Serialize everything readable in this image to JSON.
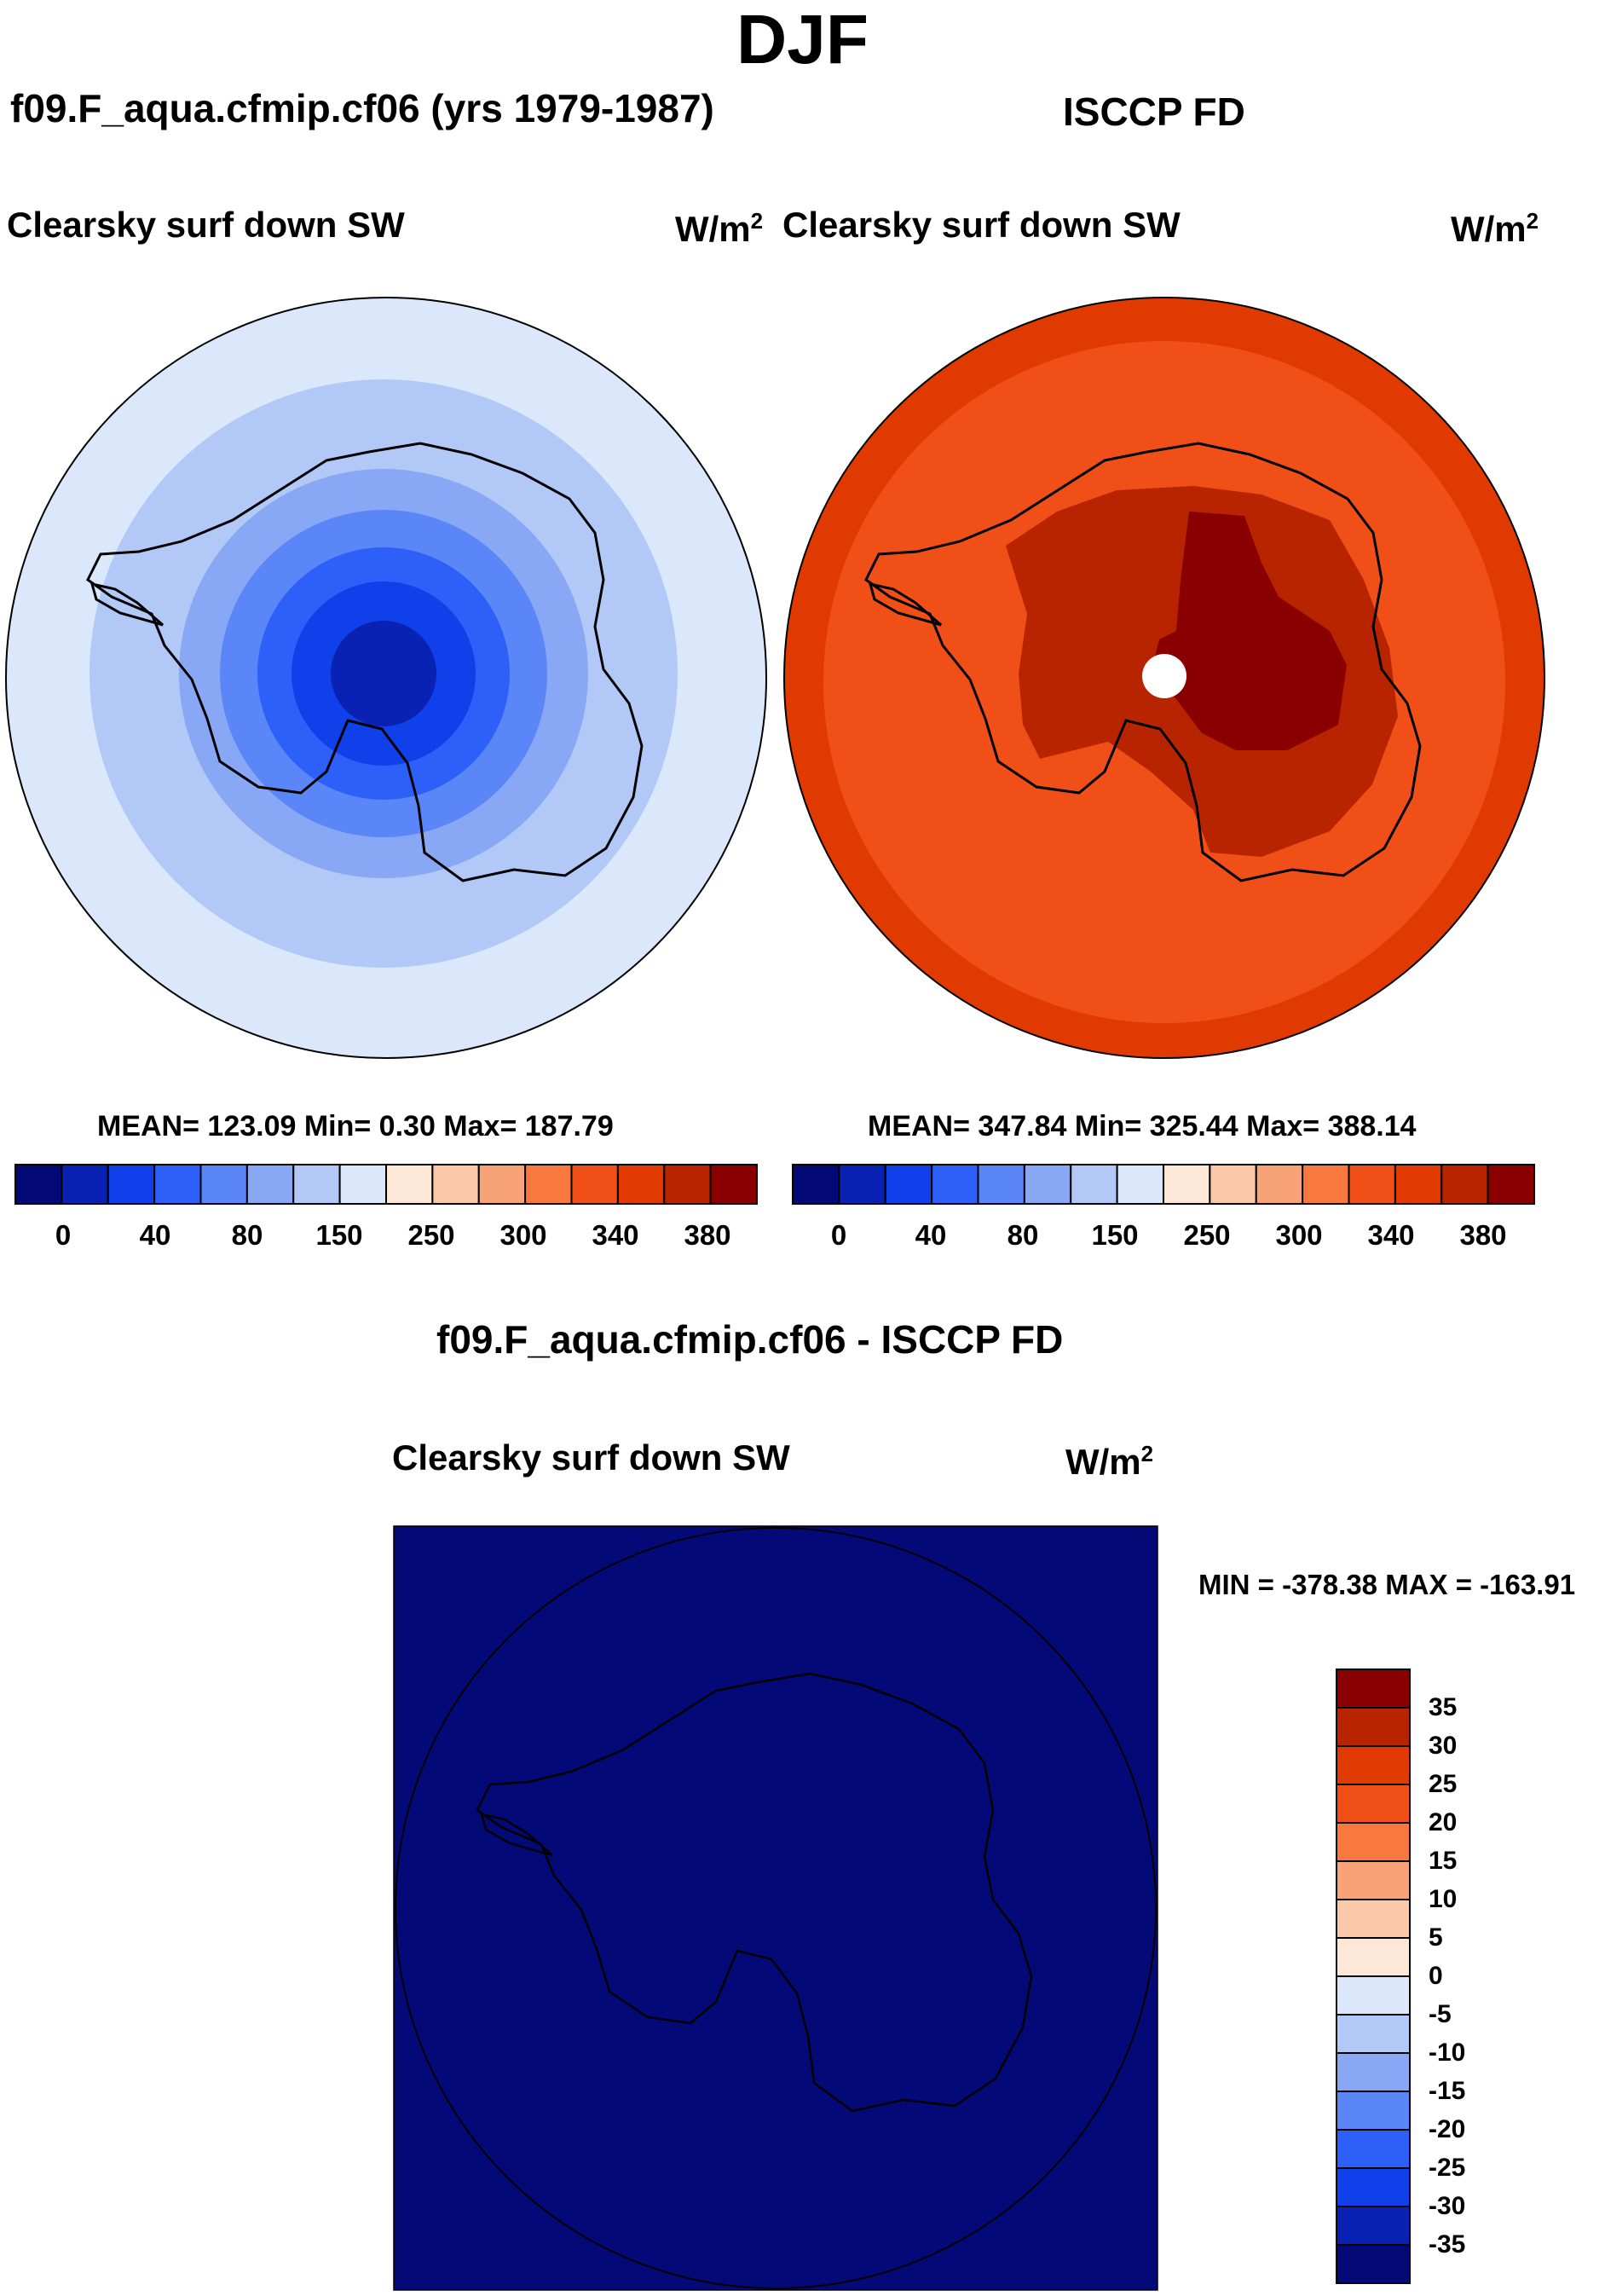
{
  "figure": {
    "season": "DJF"
  },
  "panel_model": {
    "title": "f09.F_aqua.cfmip.cf06 (yrs 1979-1987)",
    "variable": "Clearsky surf down SW",
    "units_base": "W/m",
    "units_exp": "2",
    "stats_text": "MEAN= 123.09  Min=   0.30  Max= 187.79"
  },
  "panel_obs": {
    "title": "ISCCP FD",
    "variable": "Clearsky surf down SW",
    "units_base": "W/m",
    "units_exp": "2",
    "stats_text": "MEAN= 347.84  Min= 325.44  Max= 388.14"
  },
  "panel_diff": {
    "title": "f09.F_aqua.cfmip.cf06 - ISCCP FD",
    "variable": "Clearsky surf down SW",
    "units_base": "W/m",
    "units_exp": "2",
    "stats_text": "MIN = -378.38 MAX = -163.91"
  },
  "chart_data": [
    {
      "type": "heatmap",
      "projection": "south polar stereographic",
      "title": "f09.F_aqua.cfmip.cf06 (yrs 1979-1987)",
      "variable": "Clearsky surf down SW",
      "units": "W/m2",
      "mean": 123.09,
      "min": 0.3,
      "max": 187.79,
      "contour_rings_outer_to_inner": [
        150,
        120,
        100,
        80,
        60,
        40,
        20
      ],
      "colorbar_levels": [
        0,
        20,
        40,
        60,
        80,
        100,
        150,
        200,
        250,
        275,
        300,
        320,
        340,
        360,
        380
      ],
      "colorbar_tick_labels": [
        "0",
        "40",
        "80",
        "150",
        "250",
        "300",
        "340",
        "380"
      ]
    },
    {
      "type": "heatmap",
      "projection": "south polar stereographic",
      "title": "ISCCP FD",
      "variable": "Clearsky surf down SW",
      "units": "W/m2",
      "mean": 347.84,
      "min": 325.44,
      "max": 388.14,
      "colorbar_tick_labels": [
        "0",
        "40",
        "80",
        "150",
        "250",
        "300",
        "340",
        "380"
      ]
    },
    {
      "type": "heatmap",
      "projection": "south polar stereographic",
      "title": "f09.F_aqua.cfmip.cf06 - ISCCP FD",
      "variable": "Clearsky surf down SW",
      "units": "W/m2",
      "min": -378.38,
      "max": -163.91,
      "colorbar_tick_labels": [
        "35",
        "30",
        "25",
        "20",
        "15",
        "10",
        "5",
        "0",
        "-5",
        "-10",
        "-15",
        "-20",
        "-25",
        "-30",
        "-35"
      ]
    }
  ],
  "colors": {
    "palette": [
      "#030a78",
      "#0a22b4",
      "#1040ea",
      "#2c60f8",
      "#5a86f8",
      "#88a8f6",
      "#b2c9f8",
      "#dbe8fb",
      "#fde8d8",
      "#fbc8a8",
      "#f8a278",
      "#f8783e",
      "#f05018",
      "#e03a00",
      "#b82400",
      "#8a0000"
    ],
    "model_rings": [
      "#dbe8fb",
      "#b2c9f8",
      "#88a8f6",
      "#5a86f8",
      "#2c60f8",
      "#1040ea",
      "#0a22b4"
    ],
    "obs_levels": [
      "#e03a00",
      "#f05018",
      "#b82400",
      "#8a0000"
    ],
    "diff_fill": "#030a78"
  }
}
